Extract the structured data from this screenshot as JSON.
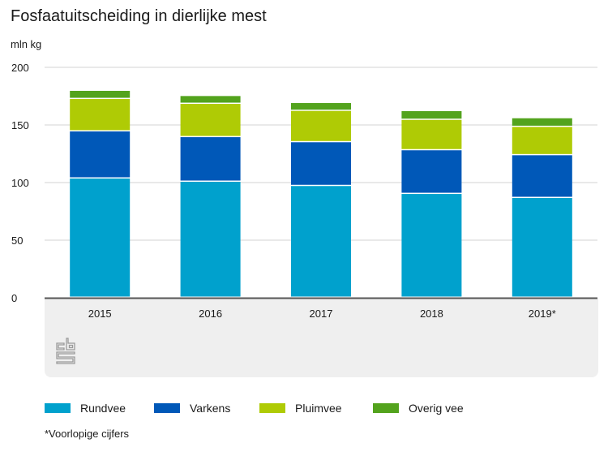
{
  "header": {
    "title": "Fosfaatuitscheiding in dierlijke mest",
    "unit_label": "mln kg"
  },
  "footnote": "*Voorlopige cijfers",
  "logo": {
    "icon": "cbs-logo-icon"
  },
  "chart_data": {
    "type": "bar",
    "stacked": true,
    "title": "Fosfaatuitscheiding in dierlijke mest",
    "xlabel": "",
    "ylabel": "mln kg",
    "ylim": [
      0,
      200
    ],
    "yticks": [
      0,
      50,
      100,
      150,
      200
    ],
    "grid": true,
    "legend_position": "bottom",
    "categories": [
      "2015",
      "2016",
      "2017",
      "2018",
      "2019*"
    ],
    "series": [
      {
        "name": "Rundvee",
        "color": "#00a1cd",
        "values": [
          103.5,
          100.7,
          97.0,
          90.1,
          86.6
        ]
      },
      {
        "name": "Varkens",
        "color": "#0058b8",
        "values": [
          40.9,
          38.7,
          38.0,
          37.9,
          37.1
        ]
      },
      {
        "name": "Pluimvee",
        "color": "#afcb05",
        "values": [
          28.1,
          28.9,
          27.2,
          26.4,
          24.6
        ]
      },
      {
        "name": "Overig vee",
        "color": "#53a31d",
        "values": [
          7.1,
          6.8,
          6.8,
          7.6,
          7.5
        ]
      }
    ]
  }
}
